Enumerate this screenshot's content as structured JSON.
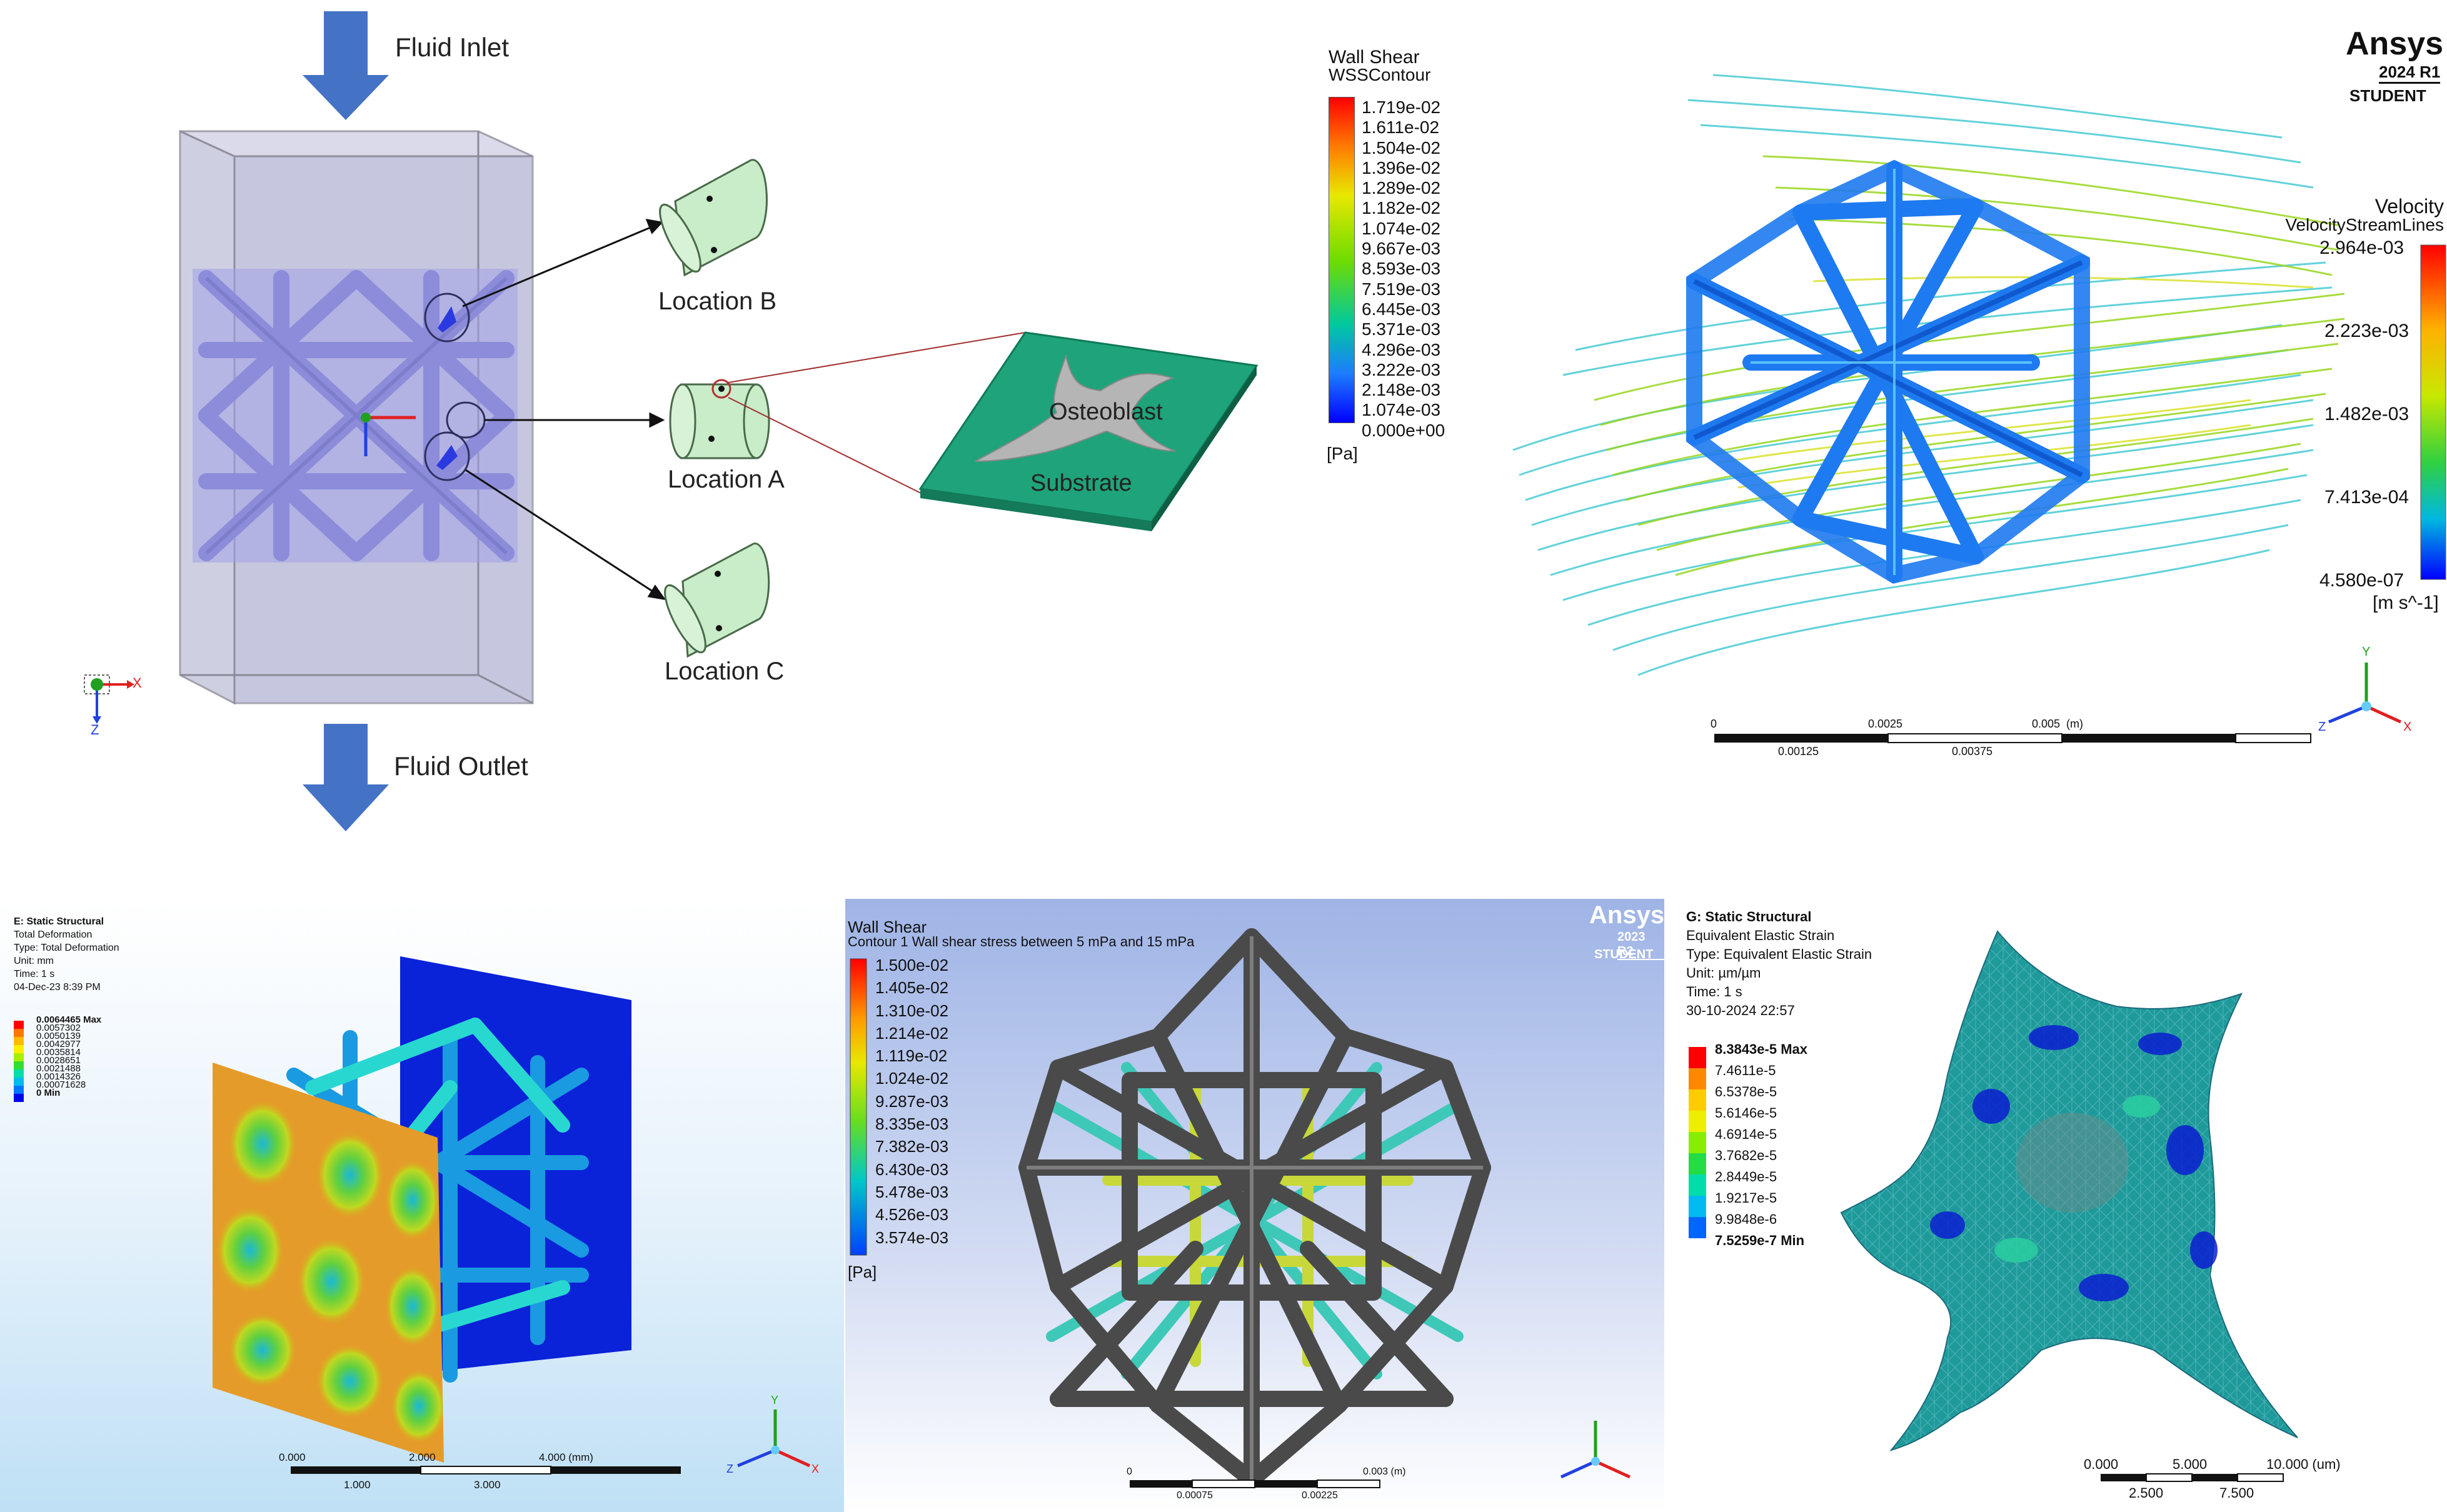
{
  "colors": {
    "arrow_blue": "#4472c4",
    "domain_fill": "#b8b8d8",
    "scaffold_fill": "#9999e0",
    "location_green": "#c9ecc9",
    "substrate_green": "#1fa37a",
    "contour_blue": "#0000ff",
    "contour_red": "#ff0000",
    "panel4_bg_top": "#ffffff",
    "panel4_bg_bottom": "#bfe0f5",
    "panel5_bg_top": "#9fb4e6",
    "panel5_bg_bottom": "#ffffff",
    "scaffold_gray": "#4a4a4a"
  },
  "schematic": {
    "fluid_inlet": "Fluid Inlet",
    "fluid_outlet": "Fluid Outlet",
    "location_a": "Location A",
    "location_b": "Location B",
    "location_c": "Location C",
    "osteoblast": "Osteoblast",
    "substrate": "Substrate",
    "axis_x": "X",
    "axis_z": "Z"
  },
  "wss_legend": {
    "title1": "Wall Shear",
    "title2": "WSSContour",
    "values": [
      "1.719e-02",
      "1.611e-02",
      "1.504e-02",
      "1.396e-02",
      "1.289e-02",
      "1.182e-02",
      "1.074e-02",
      "9.667e-03",
      "8.593e-03",
      "7.519e-03",
      "6.445e-03",
      "5.371e-03",
      "4.296e-03",
      "3.222e-03",
      "2.148e-03",
      "1.074e-03",
      "0.000e+00"
    ],
    "unit": "[Pa]"
  },
  "streamline_panel": {
    "logo": "Ansys",
    "version": "2024 R1",
    "edition": "STUDENT",
    "legend_title1": "Velocity",
    "legend_title2": "VelocityStreamLines",
    "values": [
      "2.964e-03",
      "2.223e-03",
      "1.482e-03",
      "7.413e-04",
      "4.580e-07"
    ],
    "unit": "[m s^-1]",
    "scale_top": [
      "0",
      "0.0025",
      "0.005",
      "(m)"
    ],
    "scale_bottom": [
      "0.00125",
      "0.00375"
    ],
    "axis_x": "X",
    "axis_y": "Y",
    "axis_z": "Z"
  },
  "deformation_panel": {
    "lines": [
      "E: Static Structural",
      "Total Deformation",
      "Type: Total Deformation",
      "Unit: mm",
      "Time: 1 s",
      "04-Dec-23 8:39 PM"
    ],
    "legend": [
      "0.0064465 Max",
      "0.0057302",
      "0.0050139",
      "0.0042977",
      "0.0035814",
      "0.0028651",
      "0.0021488",
      "0.0014326",
      "0.00071628",
      "0 Min"
    ],
    "scale_top": [
      "0.000",
      "2.000",
      "4.000 (mm)"
    ],
    "scale_bottom": [
      "1.000",
      "3.000"
    ],
    "axis_y": "Y",
    "axis_x": "X",
    "axis_z": "Z"
  },
  "wss2_panel": {
    "title1": "Wall Shear",
    "title2": "Contour 1 Wall shear stress between 5 mPa and 15 mPa",
    "values": [
      "1.500e-02",
      "1.405e-02",
      "1.310e-02",
      "1.214e-02",
      "1.119e-02",
      "1.024e-02",
      "9.287e-03",
      "8.335e-03",
      "7.382e-03",
      "6.430e-03",
      "5.478e-03",
      "4.526e-03",
      "3.574e-03"
    ],
    "unit": "[Pa]",
    "logo": "Ansys",
    "version": "2023 R2",
    "edition": "STUDENT",
    "scale_top": [
      "0",
      "0.003 (m)"
    ],
    "scale_bottom": [
      "0.00075",
      "0.00225"
    ]
  },
  "strain_panel": {
    "lines": [
      "G: Static Structural",
      "Equivalent Elastic Strain",
      "Type: Equivalent Elastic Strain",
      "Unit: µm/µm",
      "Time: 1 s",
      "30-10-2024 22:57"
    ],
    "legend": [
      "8.3843e-5 Max",
      "7.4611e-5",
      "6.5378e-5",
      "5.6146e-5",
      "4.6914e-5",
      "3.7682e-5",
      "2.8449e-5",
      "1.9217e-5",
      "9.9848e-6",
      "7.5259e-7 Min"
    ],
    "scale_top": [
      "0.000",
      "5.000",
      "10.000 (um)"
    ],
    "scale_bottom": [
      "2.500",
      "7.500"
    ]
  }
}
